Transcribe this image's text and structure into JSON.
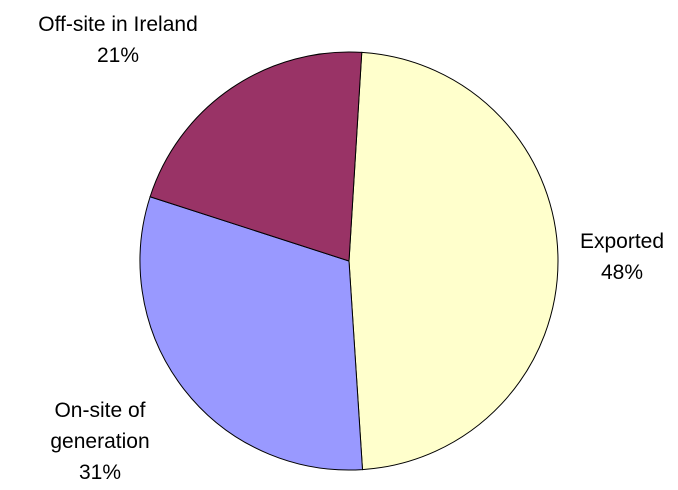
{
  "chart_data": {
    "type": "pie",
    "categories": [
      "Exported",
      "On-site of generation",
      "Off-site in Ireland"
    ],
    "values": [
      48,
      31,
      21
    ],
    "value_labels": [
      "48%",
      "31%",
      "21%"
    ],
    "colors": [
      "#FFFFCC",
      "#9999FF",
      "#993366"
    ]
  }
}
